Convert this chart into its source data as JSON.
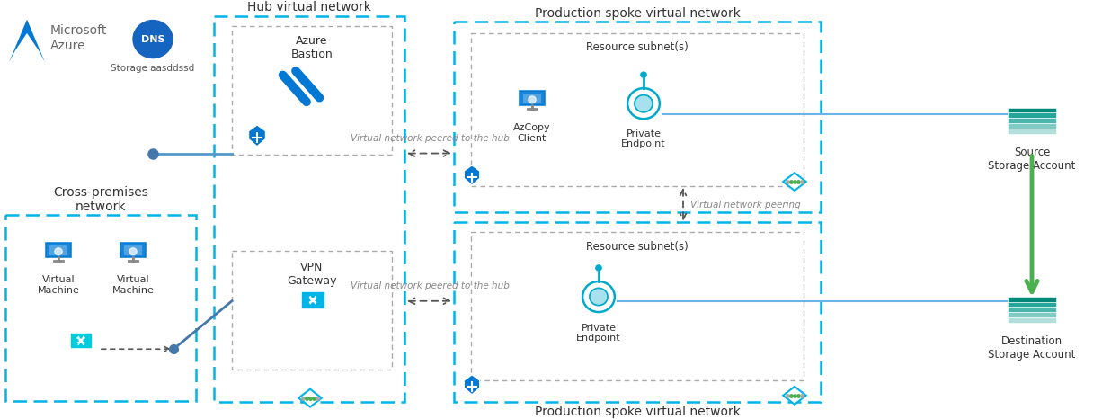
{
  "bg_color": "#ffffff",
  "dns_label": "Storage aasddssd",
  "hub_network_label": "Hub virtual network",
  "cross_premises_label": "Cross-premises\nnetwork",
  "prod_spoke_top_label": "Production spoke virtual network",
  "prod_spoke_bottom_label": "Production spoke virtual network",
  "resource_subnet_top_label": "Resource subnet(s)",
  "resource_subnet_bottom_label": "Resource subnet(s)",
  "azure_bastion_label": "Azure\nBastion",
  "vpn_gateway_label": "VPN\nGateway",
  "azcopy_label": "AzCopy\nClient",
  "private_endpoint_top_label": "Private\nEndpoint",
  "private_endpoint_bottom_label": "Private\nEndpoint",
  "vm1_label": "Virtual\nMachine",
  "vm2_label": "Virtual\nMachine",
  "source_label": "Source\nStorage Account",
  "destination_label": "Destination\nStorage Account",
  "vnet_peered_top": "Virtual network peered to the hub",
  "vnet_peered_bottom": "Virtual network peered to the hub",
  "vnet_peering_middle": "Virtual network peering",
  "dashed_box_color": "#00b4e8",
  "gray_box_color": "#aaaaaa",
  "text_color_dark": "#333333",
  "text_color_gray": "#777777",
  "arrow_color_green": "#4caf50",
  "line_color_blue": "#6ab4e8",
  "azure_blue": "#0078d4",
  "cyan_color": "#00b4e8",
  "teal_color": "#00897b"
}
